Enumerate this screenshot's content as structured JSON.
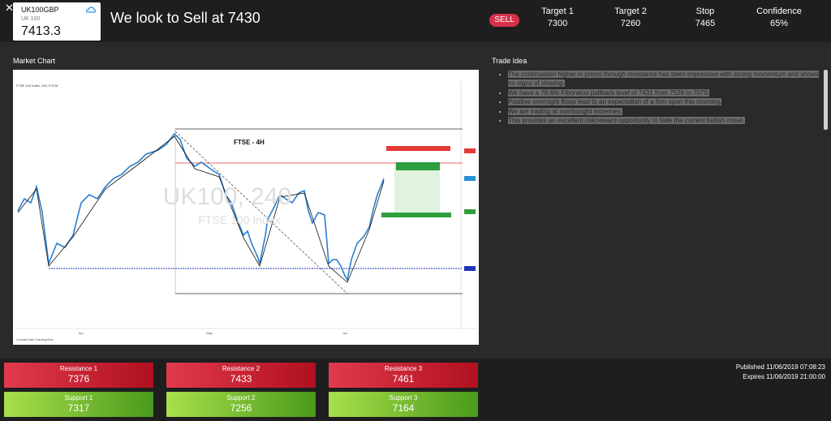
{
  "header": {
    "close": "✕",
    "symbol": "UK100GBP",
    "name": "UK 100",
    "price": "7413.3",
    "headline": "We look to Sell at 7430",
    "signal": "SELL",
    "stats": [
      {
        "label": "Target 1",
        "value": "7300"
      },
      {
        "label": "Target 2",
        "value": "7260"
      },
      {
        "label": "Stop",
        "value": "7465"
      },
      {
        "label": "Confidence",
        "value": "65%"
      }
    ]
  },
  "market_chart": {
    "title": "Market Chart",
    "chart_label": "FTSE - 4H",
    "watermark": "UK100, 240",
    "watermark_sub": "FTSE 100 Index",
    "series_label": "FTSE 100 Index, 240, FXCM",
    "credit": "Created with TradingView",
    "months": [
      "Apr",
      "May",
      "Jun"
    ]
  },
  "trade_idea": {
    "title": "Trade Idea",
    "bullets": [
      "The continuation higher in prices through resistance has been impressive with strong momentum and shows no signs of slowing.",
      "We have a 78.6% Fibonacci pullback level of 7431 from 7529 to 7079.",
      "Positive overnight flows lead to an expectation of a firm open this morning.",
      "We are trading at overbought extremes.",
      "This provides an excellent risk/reward opportunity to fade the current bullish move."
    ]
  },
  "levels": {
    "resistance": [
      {
        "label": "Resistance 1",
        "value": "7376"
      },
      {
        "label": "Resistance 2",
        "value": "7433"
      },
      {
        "label": "Resistance 3",
        "value": "7461"
      }
    ],
    "support": [
      {
        "label": "Support 1",
        "value": "7317"
      },
      {
        "label": "Support 2",
        "value": "7256"
      },
      {
        "label": "Support 3",
        "value": "7164"
      }
    ]
  },
  "footer": {
    "published": "Published 11/06/2019 07:08:23",
    "expires": "Expires 11/06/2019 21:00:00"
  }
}
